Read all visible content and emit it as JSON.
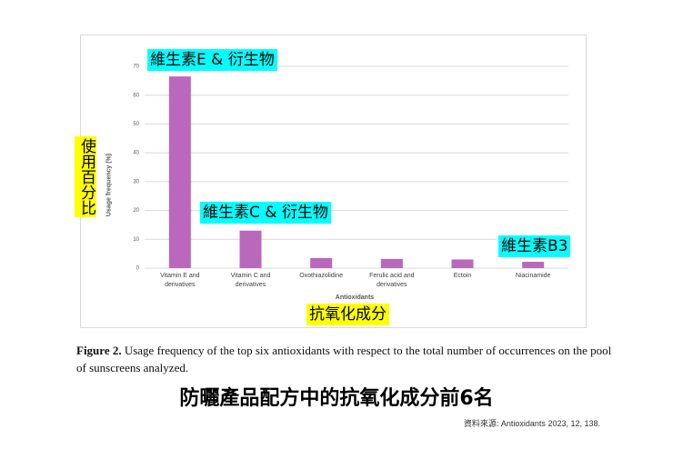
{
  "chart_data": {
    "type": "bar",
    "categories": [
      "Vitamin E and derivatives",
      "Vitamin C and derivatives",
      "Oxothiazolidine",
      "Ferulic acid and derivatives",
      "Ectoin",
      "Niacinamide"
    ],
    "values": [
      66.5,
      13,
      3.5,
      3.2,
      3,
      2.2
    ],
    "color": "#b968bb",
    "ylim": [
      0,
      70
    ],
    "yticks": [
      0,
      10,
      20,
      30,
      40,
      50,
      60,
      70
    ],
    "grid": true,
    "y_label": "Usage frequency (%)",
    "x_label": "Antioxidants",
    "annotations": [
      "維生素E & 衍生物",
      "維生素C & 衍生物",
      "維生素B3",
      "使用百分比",
      "抗氧化成分"
    ]
  },
  "caption": {
    "label": "Figure 2.",
    "text": "Usage frequency of the top six antioxidants with respect to the total number of occurrences on the pool of sunscreens analyzed."
  },
  "headline": "防曬產品配方中的抗氧化成分前6名",
  "source": "資料來源: Antioxidants 2023, 12, 138."
}
